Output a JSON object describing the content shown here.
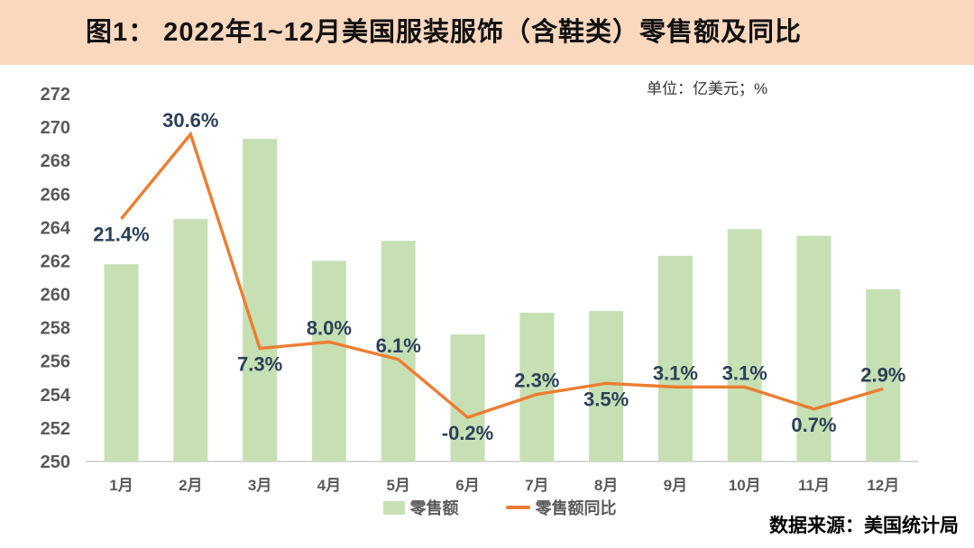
{
  "chart_data": {
    "type": "bar+line",
    "title": "图1： 2022年1~12月美国服装服饰（含鞋类）零售额及同比",
    "unit_note": "单位：亿美元；%",
    "categories": [
      "1月",
      "2月",
      "3月",
      "4月",
      "5月",
      "6月",
      "7月",
      "8月",
      "9月",
      "10月",
      "11月",
      "12月"
    ],
    "series": [
      {
        "name": "零售额",
        "type": "bar",
        "axis": "left",
        "unit": "亿美元",
        "values": [
          261.8,
          264.5,
          269.3,
          262.0,
          263.2,
          257.6,
          258.9,
          259.0,
          262.3,
          263.9,
          263.5,
          260.3
        ]
      },
      {
        "name": "零售额同比",
        "type": "line",
        "axis": "right",
        "unit": "%",
        "values": [
          21.4,
          30.6,
          7.3,
          8.0,
          6.1,
          -0.2,
          2.3,
          3.5,
          3.1,
          3.1,
          0.7,
          2.9
        ],
        "labels": [
          "21.4%",
          "30.6%",
          "7.3%",
          "8.0%",
          "6.1%",
          "-0.2%",
          "2.3%",
          "3.5%",
          "3.1%",
          "3.1%",
          "0.7%",
          "2.9%"
        ],
        "label_side": [
          "below",
          "above",
          "below",
          "above",
          "above",
          "below",
          "above",
          "below",
          "above",
          "above",
          "below",
          "above"
        ]
      }
    ],
    "y_left": {
      "min": 250,
      "max": 272,
      "step": 2,
      "ticks": [
        250,
        252,
        254,
        256,
        258,
        260,
        262,
        264,
        266,
        268,
        270,
        272
      ]
    },
    "y_right": {
      "min": -5,
      "max": 35,
      "axis_visible": false
    },
    "grid": false,
    "legend": {
      "position": "bottom-center",
      "entries": [
        "零售额",
        "零售额同比"
      ]
    },
    "source": "数据来源：美国统计局"
  },
  "colors": {
    "page_bg": "#ffffff",
    "header_bg": "#f9d8be",
    "title_text": "#111111",
    "bar": "#c6e0b4",
    "line": "#ed7d31",
    "data_label": "#2c4159",
    "axis_text": "#595959",
    "axis_line": "#d9d9d9"
  }
}
